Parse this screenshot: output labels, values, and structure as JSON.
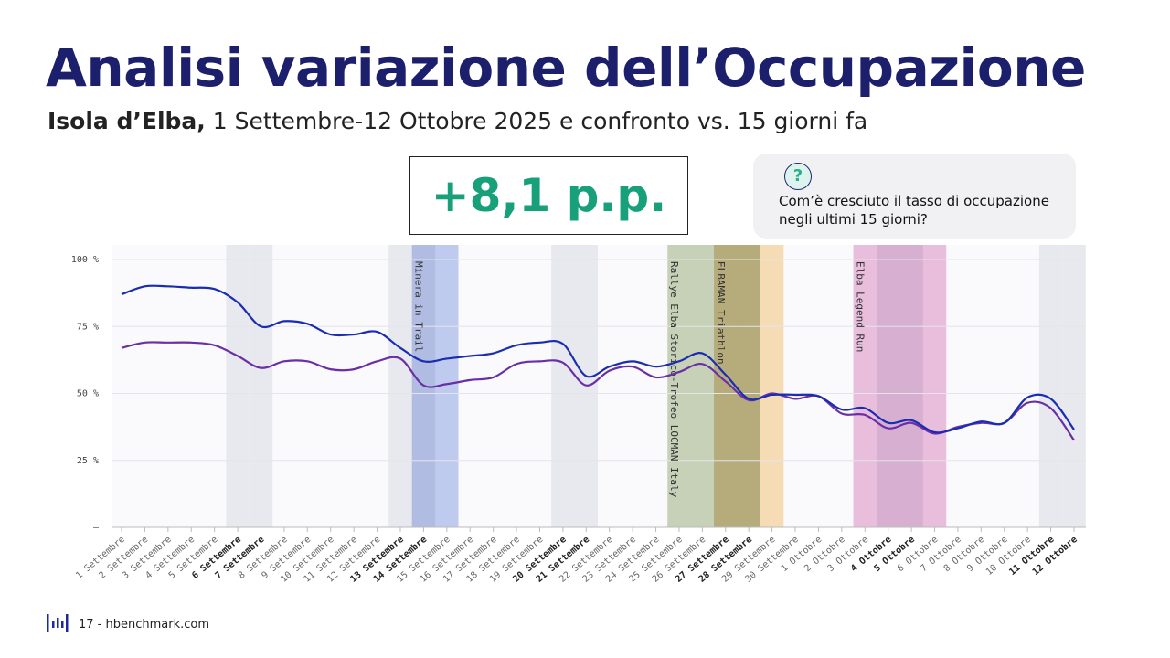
{
  "header": {
    "title": "Analisi variazione dell’Occupazione",
    "subtitle_bold": "Isola d’Elba,",
    "subtitle": "1 Settembre-12 Ottobre 2025 e confronto vs. 15 giorni fa"
  },
  "callout": "+8,1 p.p.",
  "question": {
    "icon": "?",
    "text": "Com’è cresciuto il tasso di occupazione negli ultimi 15 giorni?"
  },
  "footer": "17 - hbenchmark.com",
  "chart_data": {
    "type": "line",
    "categories": [
      "1 Settembre",
      "2 Settembre",
      "3 Settembre",
      "4 Settembre",
      "5 Settembre",
      "6 Settembre",
      "7 Settembre",
      "8 Settembre",
      "9 Settembre",
      "10 Settembre",
      "11 Settembre",
      "12 Settembre",
      "13 Settembre",
      "14 Settembre",
      "15 Settembre",
      "16 Settembre",
      "17 Settembre",
      "18 Settembre",
      "19 Settembre",
      "20 Settembre",
      "21 Settembre",
      "22 Settembre",
      "23 Settembre",
      "24 Settembre",
      "25 Settembre",
      "26 Settembre",
      "27 Settembre",
      "28 Settembre",
      "29 Settembre",
      "30 Settembre",
      "1 Ottobre",
      "2 Ottobre",
      "3 Ottobre",
      "4 Ottobre",
      "5 Ottobre",
      "6 Ottobre",
      "7 Ottobre",
      "8 Ottobre",
      "9 Ottobre",
      "10 Ottobre",
      "11 Ottobre",
      "12 Ottobre"
    ],
    "weekends": [
      "6 Settembre",
      "7 Settembre",
      "13 Settembre",
      "14 Settembre",
      "20 Settembre",
      "21 Settembre",
      "27 Settembre",
      "28 Settembre",
      "4 Ottobre",
      "5 Ottobre",
      "11 Ottobre",
      "12 Ottobre"
    ],
    "events": [
      {
        "label": "Minera in Trail",
        "from": "14 Settembre",
        "to": "15 Settembre",
        "color": "#8fa8e8"
      },
      {
        "label": "Rallye Elba Storico-Trofeo LOCMAN Italy",
        "from": "25 Settembre",
        "to": "28 Settembre",
        "color": "#9fb37f"
      },
      {
        "label": "ELBAMAN Triathlon",
        "from": "27 Settembre",
        "to": "29 Settembre",
        "color": "#f7c87a"
      },
      {
        "label": "Elba Legend Run",
        "from": "3 Ottobre",
        "to": "6 Ottobre",
        "color": "#de8fc4"
      }
    ],
    "series": [
      {
        "color": "#1a2db0",
        "values": [
          87,
          90,
          90,
          89.5,
          89,
          84,
          75,
          77,
          76,
          72,
          72,
          73,
          67,
          62,
          63,
          64,
          65,
          68,
          69,
          68.5,
          56.5,
          60,
          62,
          60,
          62,
          65,
          57,
          48,
          49.5,
          49.5,
          49,
          44,
          44.5,
          39,
          40,
          35.5,
          37,
          39.5,
          39,
          48.5,
          48,
          36.5
        ]
      },
      {
        "color": "#6a2fa6",
        "values": [
          67,
          69,
          69,
          69,
          68,
          64,
          59.5,
          62,
          62,
          59,
          59,
          62,
          63,
          53,
          53.5,
          55,
          56,
          61,
          62,
          61.5,
          53,
          58.5,
          60,
          56,
          58,
          61,
          54.5,
          47.5,
          50,
          48,
          49,
          42.5,
          42,
          37,
          39,
          35,
          37.5,
          39,
          39,
          46.5,
          44.5,
          32.5
        ]
      }
    ],
    "ylim": [
      0,
      100
    ],
    "yticks": [
      {
        "value": 0,
        "label": "–"
      },
      {
        "value": 25,
        "label": "25 %"
      },
      {
        "value": 50,
        "label": "50 %"
      },
      {
        "value": 75,
        "label": "75 %"
      },
      {
        "value": 100,
        "label": "100 %"
      }
    ],
    "grid": true
  }
}
